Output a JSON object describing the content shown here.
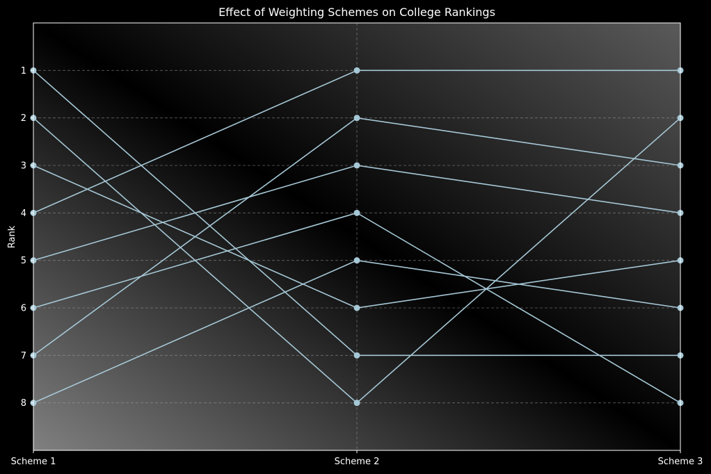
{
  "chart_data": {
    "type": "line",
    "title": "Effect of Weighting Schemes on College Rankings",
    "xlabel": "",
    "ylabel": "Rank",
    "categories": [
      "Scheme 1",
      "Scheme 2",
      "Scheme 3"
    ],
    "y_ticks": [
      1,
      2,
      3,
      4,
      5,
      6,
      7,
      8
    ],
    "ylim": [
      9,
      0
    ],
    "y_inverted": true,
    "grid": true,
    "series": [
      {
        "values": [
          1,
          7,
          7
        ]
      },
      {
        "values": [
          2,
          8,
          2
        ]
      },
      {
        "values": [
          3,
          6,
          5
        ]
      },
      {
        "values": [
          4,
          1,
          1
        ]
      },
      {
        "values": [
          5,
          3,
          4
        ]
      },
      {
        "values": [
          6,
          4,
          8
        ]
      },
      {
        "values": [
          7,
          2,
          3
        ]
      },
      {
        "values": [
          8,
          5,
          6
        ]
      }
    ],
    "line_color": "#a6c8d6",
    "marker_color": "#a6c8d6",
    "background_gradient": [
      "#808080",
      "#000000"
    ]
  }
}
